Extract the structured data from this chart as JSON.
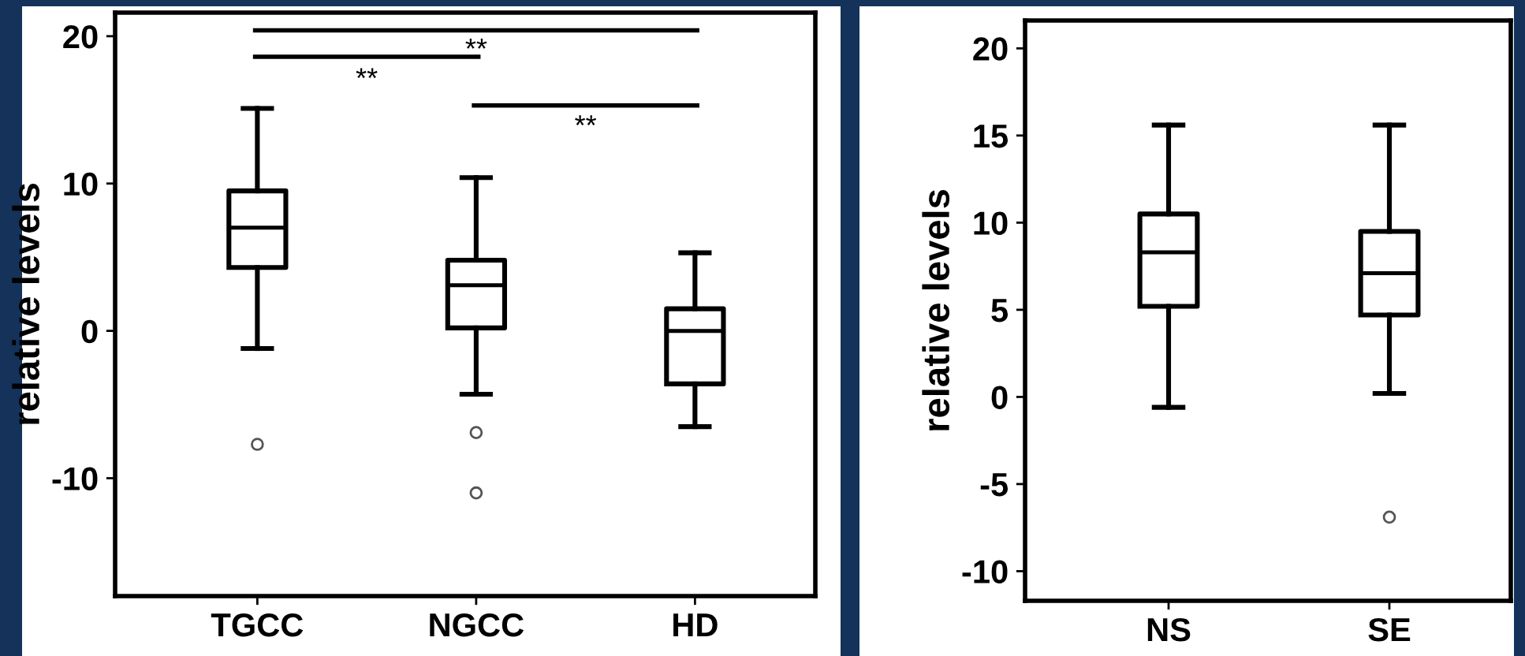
{
  "chart_data": [
    {
      "type": "box",
      "categories": [
        "TGCC",
        "NGCC",
        "HD"
      ],
      "ylabel": "relative levels",
      "ylim": [
        -18,
        21.6
      ],
      "yticks": [
        -10,
        0,
        10,
        20
      ],
      "grid": false,
      "boxes": [
        {
          "low": -1.2,
          "q1": 4.3,
          "median": 7.0,
          "q3": 9.5,
          "high": 15.1,
          "outliers": [
            -7.7
          ]
        },
        {
          "low": -4.3,
          "q1": 0.2,
          "median": 3.1,
          "q3": 4.8,
          "high": 10.4,
          "outliers": [
            -6.9,
            -11.0
          ]
        },
        {
          "low": -6.5,
          "q1": -3.6,
          "median": 0.0,
          "q3": 1.5,
          "high": 5.3
        }
      ],
      "annotations": [
        "**",
        "**",
        "**"
      ]
    },
    {
      "type": "box",
      "categories": [
        "NS",
        "SE"
      ],
      "ylabel": "relative levels",
      "ylim": [
        -11.7,
        21.6
      ],
      "yticks": [
        -10,
        -5,
        0,
        5,
        10,
        15,
        20
      ],
      "grid": false,
      "boxes": [
        {
          "low": -0.6,
          "q1": 5.2,
          "median": 8.3,
          "q3": 10.5,
          "high": 15.6
        },
        {
          "low": 0.2,
          "q1": 4.7,
          "median": 7.1,
          "q3": 9.5,
          "high": 15.6,
          "outliers": [
            -6.9
          ]
        }
      ]
    }
  ]
}
